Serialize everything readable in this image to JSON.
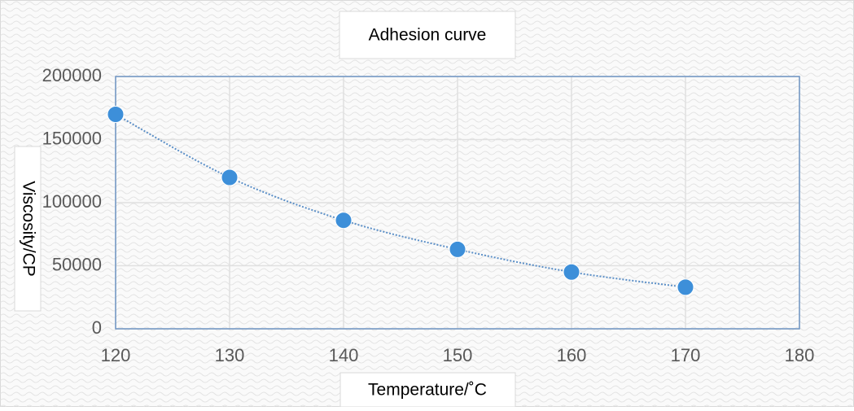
{
  "chart_data": {
    "type": "scatter",
    "title": "Adhesion curve",
    "x_label": "Temperature/˚C",
    "y_label": "Viscosity/CP",
    "x": [
      120,
      130,
      140,
      150,
      160,
      170
    ],
    "series": [
      {
        "name": "Viscosity",
        "color": "#3d8fd9",
        "values": [
          170000,
          120000,
          86000,
          63000,
          45000,
          33000
        ]
      }
    ],
    "xlim": [
      120,
      180
    ],
    "xticks": [
      120,
      130,
      140,
      150,
      160,
      170,
      180
    ],
    "ylim": [
      0,
      200000
    ],
    "yticks": [
      0,
      50000,
      100000,
      150000,
      200000
    ],
    "grid": true,
    "smooth_line": true
  }
}
